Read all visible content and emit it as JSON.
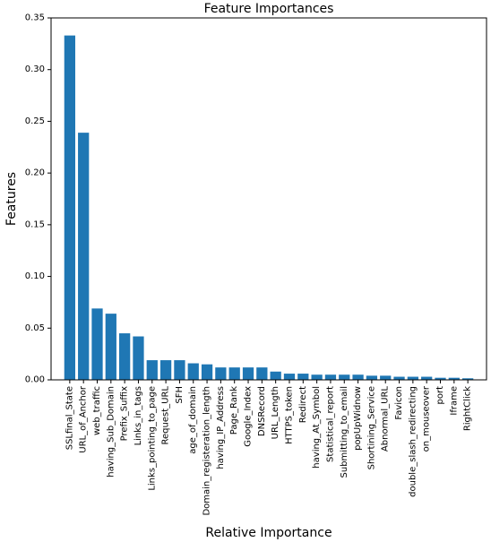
{
  "chart_data": {
    "type": "bar",
    "title": "Feature Importances",
    "xlabel": "Relative Importance",
    "ylabel": "Features",
    "ylim": [
      0,
      0.35
    ],
    "yticks": [
      "0.00",
      "0.05",
      "0.10",
      "0.15",
      "0.20",
      "0.25",
      "0.30",
      "0.35"
    ],
    "grid": false,
    "legend": "none",
    "bar_color": "#1f77b4",
    "categories": [
      "SSLfinal_State",
      "URL_of_Anchor",
      "web_traffic",
      "having_Sub_Domain",
      "Prefix_Suffix",
      "Links_in_tags",
      "Links_pointing_to_page",
      "Request_URL",
      "SFH",
      "age_of_domain",
      "Domain_registeration_length",
      "having_IP_Address",
      "Page_Rank",
      "Google_Index",
      "DNSRecord",
      "URL_Length",
      "HTTPS_token",
      "Redirect",
      "having_At_Symbol",
      "Statistical_report",
      "Submitting_to_email",
      "popUpWidnow",
      "Shortining_Service",
      "Abnormal_URL",
      "Favicon",
      "double_slash_redirecting",
      "on_mouseover",
      "port",
      "Iframe",
      "RightClick"
    ],
    "values": [
      0.333,
      0.239,
      0.069,
      0.064,
      0.045,
      0.042,
      0.019,
      0.019,
      0.019,
      0.016,
      0.015,
      0.012,
      0.012,
      0.012,
      0.012,
      0.008,
      0.006,
      0.006,
      0.005,
      0.005,
      0.005,
      0.005,
      0.004,
      0.004,
      0.003,
      0.003,
      0.003,
      0.002,
      0.002,
      0.0015
    ]
  }
}
